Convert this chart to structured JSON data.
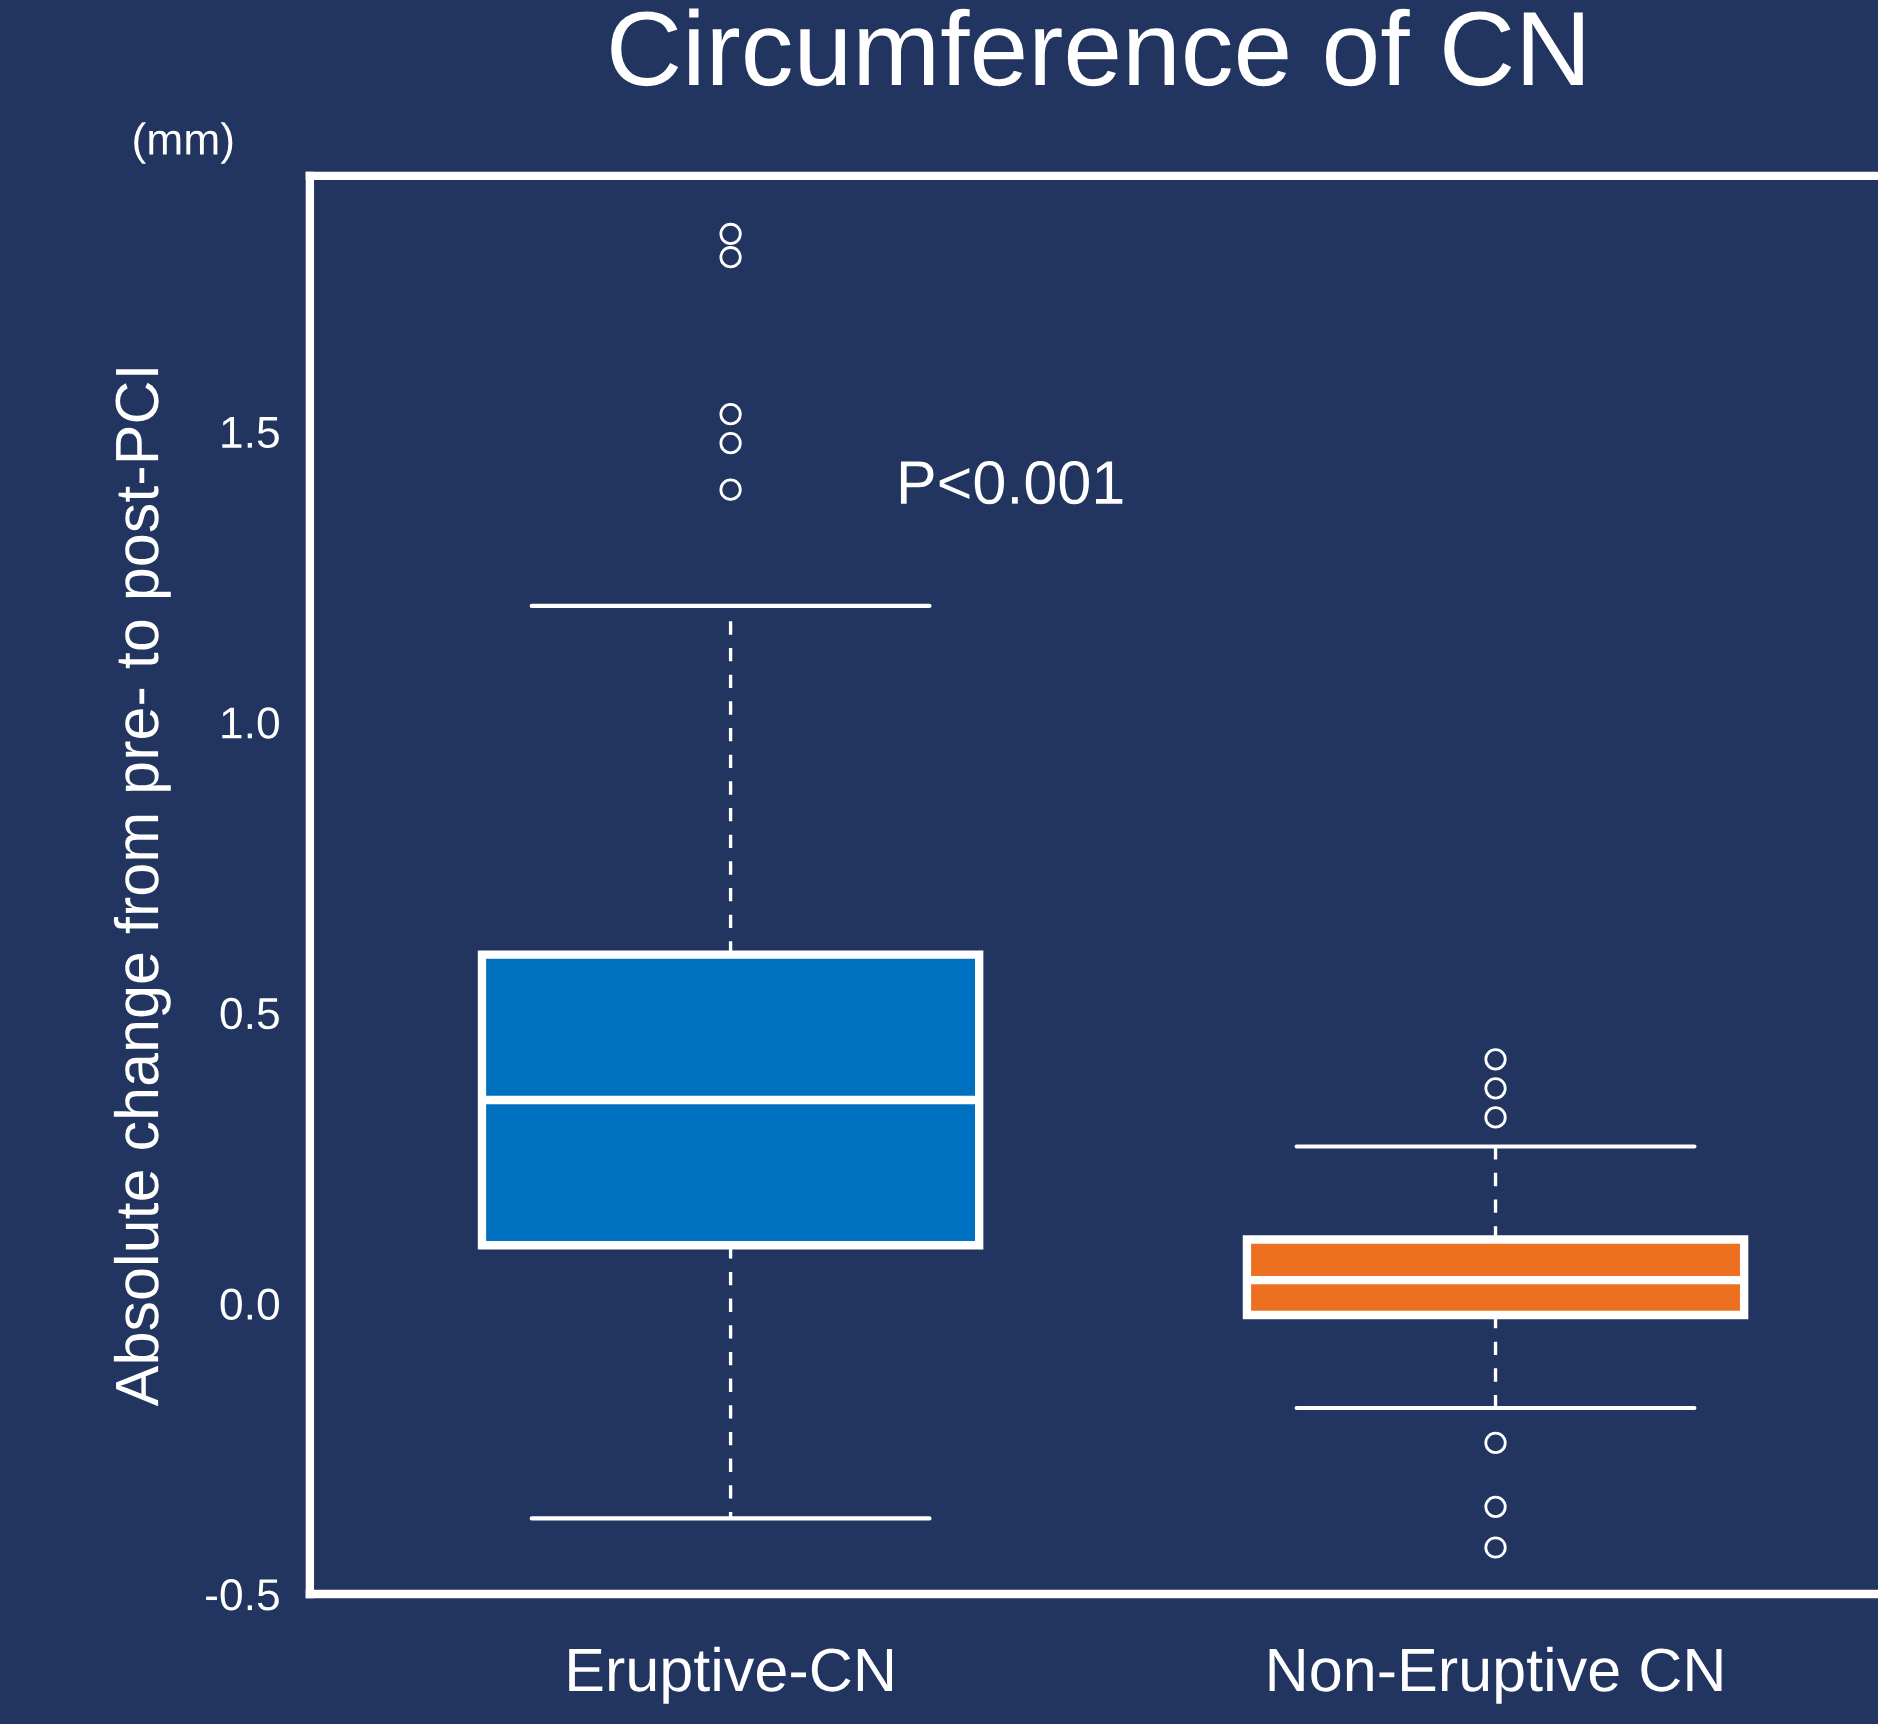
{
  "chart_data": {
    "type": "box",
    "title": "Circumference of CN",
    "ylabel": "Absolute change from pre- to post-PCI",
    "categories": [
      "Eruptive-CN",
      "Non-Eruptive CN"
    ],
    "boxes": [
      {
        "low": -0.37,
        "q1": 0.1,
        "median": 0.35,
        "q3": 0.6,
        "high": 1.2,
        "outliers": [
          1.84,
          1.8,
          1.53,
          1.48,
          1.4
        ]
      },
      {
        "low": -0.18,
        "q1": -0.02,
        "median": 0.04,
        "q3": 0.11,
        "high": 0.27,
        "outliers": [
          0.42,
          0.37,
          0.32,
          -0.24,
          -0.35,
          -0.42
        ]
      }
    ],
    "colors": [
      "#0070c0",
      "#ed7020"
    ],
    "ylim": [
      -0.5,
      1.94
    ],
    "yticks": [
      {
        "value": -0.5,
        "label": "-0.5"
      },
      {
        "value": 0,
        "label": "0.0"
      },
      0.5,
      {
        "value": 1,
        "label": "1.0"
      },
      1.5
    ],
    "annotations": [
      "(mm)",
      "P<0.001"
    ],
    "grid": false,
    "legend": false
  }
}
